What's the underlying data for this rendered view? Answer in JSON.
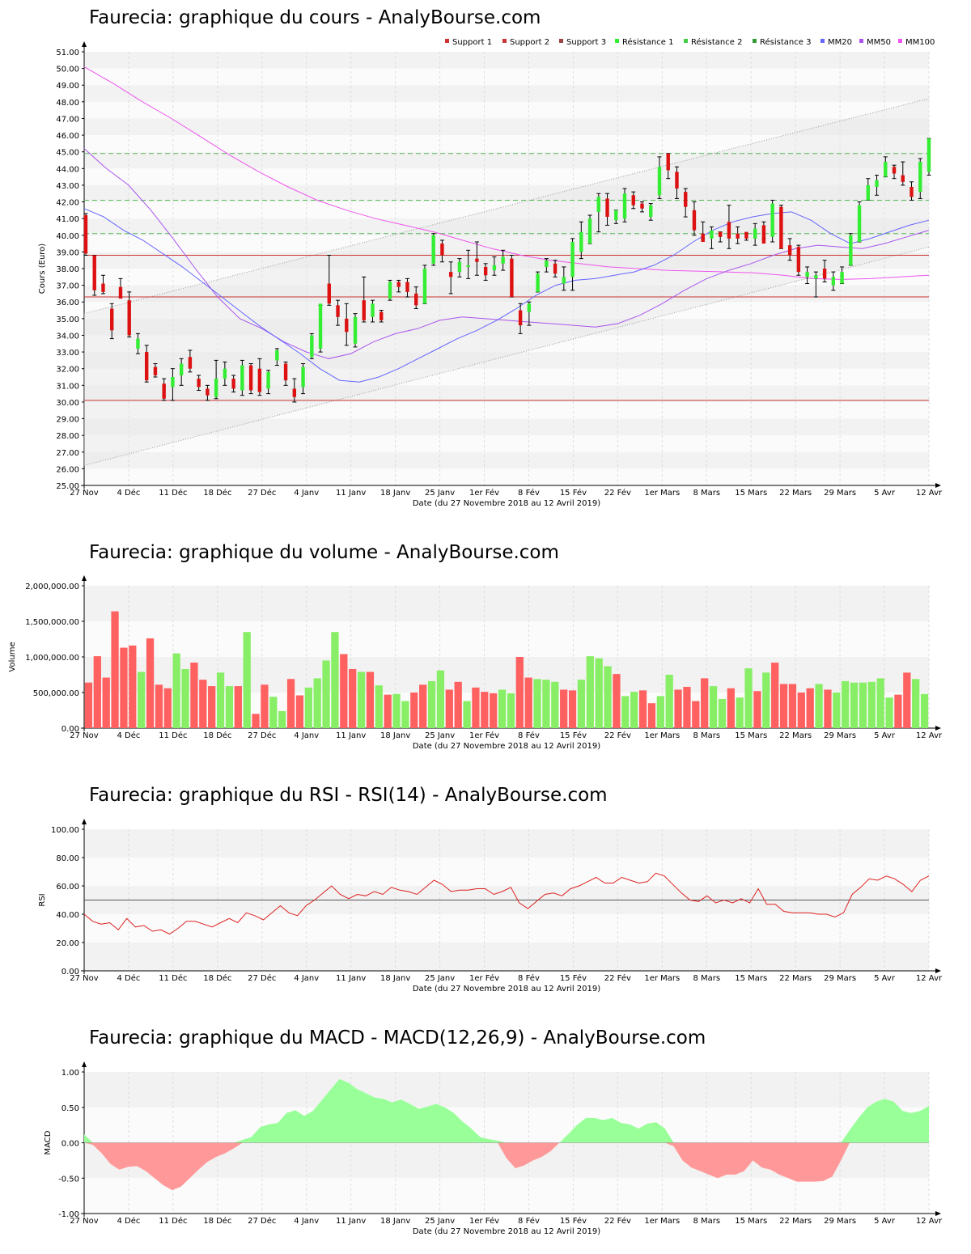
{
  "x_axis": {
    "xlabel": "Date (du 27 Novembre 2018 au 12 Avril 2019)",
    "ticks": [
      "27 Nov",
      "4 Déc",
      "11 Déc",
      "18 Déc",
      "27 Déc",
      "4 Janv",
      "11 Janv",
      "18 Janv",
      "25 Janv",
      "1er Fév",
      "8 Fév",
      "15 Fév",
      "22 Fév",
      "1er Mars",
      "8 Mars",
      "15 Mars",
      "22 Mars",
      "29 Mars",
      "5 Avr",
      "12 Avr"
    ]
  },
  "panels": {
    "price": {
      "title": "Faurecia: graphique du cours - AnalyBourse.com"
    },
    "volume": {
      "title": "Faurecia: graphique du volume - AnalyBourse.com"
    },
    "rsi": {
      "title": "Faurecia: graphique du RSI - RSI(14) - AnalyBourse.com"
    },
    "macd": {
      "title": "Faurecia: graphique du MACD - MACD(12,26,9) - AnalyBourse.com"
    }
  },
  "colors": {
    "up": "#33ee33",
    "down": "#dd1111",
    "vol_up": "#88ee66",
    "vol_down": "#ff6060",
    "support": "#cc3333",
    "resistance": "#55bb55",
    "mm20": "#6666ff",
    "mm50": "#aa55ee",
    "mm100": "#ee55ee",
    "rsi": "#dd2222",
    "macd_pos": "#99ff99",
    "macd_neg": "#ff9999"
  },
  "chart_data": [
    {
      "type": "candlestick",
      "title": "Faurecia: graphique du cours - AnalyBourse.com",
      "ylabel": "Cours (Euro)",
      "ylim": [
        25,
        51
      ],
      "legend": [
        "Support 1",
        "Support 2",
        "Support 3",
        "Résistance 1",
        "Résistance 2",
        "Résistance 3",
        "MM20",
        "MM50",
        "MM100"
      ],
      "support_levels": [
        30.1,
        36.3,
        38.8
      ],
      "resistance_levels": [
        40.1,
        42.1,
        44.9
      ],
      "trend_channel": {
        "upper": [
          35.3,
          48.2
        ],
        "lower": [
          26.2,
          39.3
        ]
      },
      "candles": [
        [
          41.3,
          38.8,
          41.2,
          38.9
        ],
        [
          38.8,
          36.4,
          38.8,
          36.7
        ],
        [
          37.6,
          36.5,
          37.1,
          36.6
        ],
        [
          35.9,
          33.8,
          35.6,
          34.3
        ],
        [
          37.4,
          36.3,
          36.9,
          36.2
        ],
        [
          36.6,
          33.9,
          36.1,
          34.0
        ],
        [
          34.1,
          32.9,
          33.2,
          33.8
        ],
        [
          33.4,
          31.2,
          33.0,
          31.3
        ],
        [
          32.3,
          31.5,
          32.1,
          31.6
        ],
        [
          31.4,
          30.1,
          31.1,
          30.2
        ],
        [
          32.0,
          30.1,
          30.9,
          31.5
        ],
        [
          32.6,
          31.0,
          31.6,
          32.3
        ],
        [
          33.1,
          31.8,
          32.7,
          32.0
        ],
        [
          31.6,
          30.7,
          31.4,
          30.9
        ],
        [
          31.0,
          30.1,
          30.8,
          30.4
        ],
        [
          32.5,
          30.2,
          30.3,
          31.4
        ],
        [
          32.4,
          31.0,
          31.4,
          32.0
        ],
        [
          31.6,
          30.6,
          31.4,
          30.8
        ],
        [
          32.5,
          30.4,
          30.7,
          32.2
        ],
        [
          32.3,
          30.5,
          32.2,
          30.7
        ],
        [
          32.6,
          30.4,
          32.0,
          30.6
        ],
        [
          31.9,
          30.5,
          30.8,
          31.8
        ],
        [
          33.2,
          32.2,
          32.5,
          33.1
        ],
        [
          32.4,
          31.0,
          32.3,
          31.3
        ],
        [
          31.4,
          30.0,
          30.8,
          30.3
        ],
        [
          32.3,
          30.5,
          30.9,
          32.1
        ],
        [
          34.1,
          32.6,
          32.7,
          34.0
        ],
        [
          35.8,
          33.0,
          33.2,
          35.9
        ],
        [
          38.8,
          35.8,
          37.1,
          35.9
        ],
        [
          36.1,
          34.6,
          35.8,
          35.1
        ],
        [
          35.9,
          33.4,
          35.0,
          34.2
        ],
        [
          35.3,
          33.3,
          33.5,
          35.1
        ],
        [
          37.5,
          34.8,
          36.1,
          34.9
        ],
        [
          36.1,
          34.8,
          35.1,
          35.9
        ],
        [
          35.5,
          34.8,
          35.4,
          34.9
        ],
        [
          37.3,
          36.1,
          36.2,
          37.2
        ],
        [
          37.3,
          36.6,
          37.2,
          36.9
        ],
        [
          37.4,
          36.3,
          37.2,
          36.6
        ],
        [
          36.9,
          35.6,
          36.5,
          35.8
        ],
        [
          38.2,
          35.9,
          35.9,
          38.0
        ],
        [
          40.1,
          38.2,
          38.3,
          40.0
        ],
        [
          39.7,
          38.4,
          39.5,
          38.8
        ],
        [
          38.4,
          36.5,
          37.8,
          37.5
        ],
        [
          38.6,
          37.5,
          37.8,
          38.4
        ],
        [
          39.1,
          37.4,
          38.1,
          38.2
        ],
        [
          39.6,
          37.6,
          38.6,
          38.4
        ],
        [
          38.3,
          37.3,
          38.1,
          37.6
        ],
        [
          38.7,
          37.6,
          37.9,
          38.2
        ],
        [
          39.1,
          37.9,
          38.3,
          38.7
        ],
        [
          38.8,
          36.3,
          38.6,
          36.3
        ],
        [
          35.9,
          34.1,
          35.5,
          34.6
        ],
        [
          36.0,
          34.6,
          35.4,
          35.9
        ],
        [
          37.8,
          36.6,
          36.6,
          37.7
        ],
        [
          38.6,
          37.8,
          38.1,
          38.5
        ],
        [
          38.5,
          37.5,
          38.3,
          37.7
        ],
        [
          38.1,
          36.7,
          37.1,
          37.5
        ],
        [
          39.8,
          36.7,
          37.5,
          39.6
        ],
        [
          40.8,
          38.6,
          39.0,
          40.2
        ],
        [
          41.2,
          39.5,
          39.5,
          41.0
        ],
        [
          42.5,
          40.2,
          41.4,
          42.3
        ],
        [
          42.5,
          40.6,
          42.2,
          41.1
        ],
        [
          41.5,
          40.7,
          40.9,
          41.5
        ],
        [
          42.8,
          40.8,
          41.0,
          42.5
        ],
        [
          42.6,
          41.6,
          42.4,
          41.8
        ],
        [
          42.0,
          41.4,
          41.9,
          41.6
        ],
        [
          41.9,
          40.9,
          41.1,
          41.8
        ],
        [
          44.7,
          42.2,
          42.4,
          44.1
        ],
        [
          44.9,
          43.4,
          44.9,
          43.9
        ],
        [
          44.1,
          42.2,
          43.8,
          42.8
        ],
        [
          42.8,
          41.1,
          42.6,
          41.7
        ],
        [
          42.0,
          40.0,
          41.5,
          40.3
        ],
        [
          40.8,
          39.8,
          40.1,
          39.6
        ],
        [
          40.5,
          39.2,
          39.8,
          40.3
        ],
        [
          40.2,
          39.6,
          40.2,
          39.9
        ],
        [
          41.8,
          39.2,
          40.8,
          39.8
        ],
        [
          40.5,
          39.5,
          40.1,
          39.8
        ],
        [
          40.1,
          39.7,
          40.2,
          39.8
        ],
        [
          40.7,
          39.4,
          39.8,
          40.4
        ],
        [
          40.8,
          39.8,
          40.6,
          39.5
        ],
        [
          42.1,
          39.6,
          39.9,
          41.9
        ],
        [
          41.8,
          39.2,
          41.7,
          39.2
        ],
        [
          39.8,
          38.5,
          39.4,
          38.8
        ],
        [
          39.4,
          37.6,
          39.3,
          37.8
        ],
        [
          38.1,
          37.1,
          37.5,
          37.8
        ],
        [
          37.8,
          36.3,
          37.4,
          37.6
        ],
        [
          38.5,
          37.2,
          38.0,
          37.4
        ],
        [
          37.8,
          36.7,
          37.0,
          37.5
        ],
        [
          38.1,
          37.1,
          37.1,
          37.8
        ],
        [
          40.1,
          38.2,
          38.2,
          40.0
        ],
        [
          42.0,
          39.6,
          39.6,
          41.8
        ],
        [
          43.4,
          42.1,
          42.1,
          43.0
        ],
        [
          43.6,
          42.4,
          42.9,
          43.3
        ],
        [
          44.7,
          43.5,
          43.5,
          44.4
        ],
        [
          44.2,
          43.4,
          44.1,
          43.7
        ],
        [
          44.4,
          43.0,
          43.6,
          43.2
        ],
        [
          43.2,
          42.1,
          42.9,
          42.3
        ],
        [
          44.6,
          42.2,
          42.6,
          44.4
        ],
        [
          45.8,
          43.6,
          43.8,
          45.8
        ]
      ],
      "mm20": [
        41.6,
        41.1,
        40.3,
        39.7,
        38.9,
        38.1,
        37.2,
        36.3,
        35.4,
        34.5,
        33.7,
        32.9,
        32.0,
        31.3,
        31.2,
        31.5,
        32.0,
        32.6,
        33.2,
        33.8,
        34.3,
        34.9,
        35.6,
        36.4,
        37.0,
        37.3,
        37.4,
        37.6,
        37.8,
        38.2,
        38.8,
        39.6,
        40.3,
        40.8,
        41.1,
        41.3,
        41.4,
        40.9,
        40.1,
        39.5,
        39.8,
        40.2,
        40.6,
        40.9
      ],
      "mm50": [
        45.2,
        44.0,
        43.0,
        41.5,
        39.8,
        38.0,
        36.3,
        35.0,
        34.4,
        33.6,
        33.0,
        32.6,
        32.9,
        33.6,
        34.1,
        34.4,
        34.9,
        35.1,
        35.0,
        34.9,
        34.8,
        34.7,
        34.6,
        34.5,
        34.7,
        35.2,
        35.9,
        36.7,
        37.4,
        37.9,
        38.3,
        38.8,
        39.2,
        39.4,
        39.3,
        39.2,
        39.5,
        39.9,
        40.3
      ],
      "mm100": [
        50.1,
        49.1,
        48.0,
        47.0,
        45.9,
        44.8,
        43.8,
        42.9,
        42.1,
        41.5,
        41.0,
        40.6,
        40.2,
        39.7,
        39.2,
        38.8,
        38.5,
        38.3,
        38.1,
        38.0,
        37.9,
        37.85,
        37.8,
        37.75,
        37.6,
        37.4,
        37.35,
        37.4,
        37.5,
        37.6
      ]
    },
    {
      "type": "bar",
      "title": "Faurecia: graphique du volume - AnalyBourse.com",
      "ylabel": "Volume",
      "ylim": [
        0,
        2000000
      ],
      "yticks": [
        "0.00",
        "500,000.00",
        "1,000,000.00",
        "1,500,000.00",
        "2,000,000.00"
      ],
      "values": [
        640000,
        1010000,
        710000,
        1640000,
        1130000,
        1160000,
        790000,
        1260000,
        610000,
        560000,
        1050000,
        830000,
        920000,
        680000,
        590000,
        780000,
        590000,
        590000,
        1350000,
        200000,
        610000,
        440000,
        240000,
        690000,
        460000,
        570000,
        700000,
        950000,
        1350000,
        1040000,
        830000,
        790000,
        790000,
        600000,
        470000,
        480000,
        380000,
        500000,
        610000,
        660000,
        810000,
        540000,
        650000,
        380000,
        570000,
        510000,
        490000,
        540000,
        490000,
        1000000,
        710000,
        690000,
        680000,
        650000,
        540000,
        530000,
        680000,
        1010000,
        980000,
        870000,
        760000,
        450000,
        510000,
        530000,
        350000,
        450000,
        750000,
        540000,
        580000,
        380000,
        700000,
        590000,
        410000,
        560000,
        430000,
        840000,
        520000,
        780000,
        920000,
        620000,
        620000,
        500000,
        560000,
        620000,
        540000,
        500000,
        660000,
        640000,
        640000,
        650000,
        700000,
        430000,
        470000,
        780000,
        690000,
        480000
      ],
      "up": [
        0,
        0,
        0,
        0,
        0,
        0,
        1,
        0,
        0,
        0,
        1,
        1,
        0,
        0,
        0,
        1,
        1,
        0,
        1,
        0,
        0,
        1,
        1,
        0,
        0,
        1,
        1,
        1,
        1,
        0,
        0,
        1,
        0,
        1,
        0,
        1,
        1,
        0,
        0,
        1,
        1,
        0,
        0,
        1,
        0,
        0,
        0,
        1,
        1,
        0,
        0,
        1,
        1,
        1,
        0,
        0,
        1,
        1,
        1,
        1,
        0,
        1,
        1,
        0,
        0,
        1,
        1,
        0,
        0,
        0,
        0,
        1,
        1,
        0,
        1,
        1,
        0,
        1,
        0,
        0,
        0,
        0,
        0,
        1,
        0,
        1,
        1,
        1,
        1,
        1,
        1,
        1,
        0,
        0,
        1,
        1
      ]
    },
    {
      "type": "line",
      "title": "Faurecia: graphique du RSI - RSI(14) - AnalyBourse.com",
      "ylabel": "RSI",
      "ylim": [
        0,
        100
      ],
      "yticks": [
        "0.00",
        "20.00",
        "40.00",
        "60.00",
        "80.00",
        "100.00"
      ],
      "reference": 50,
      "values": [
        40,
        35,
        33,
        34,
        29,
        37,
        31,
        32,
        28,
        29,
        26,
        30,
        35,
        35,
        33,
        31,
        34,
        37,
        34,
        41,
        39,
        36,
        41,
        46,
        41,
        39,
        46,
        50,
        55,
        60,
        54,
        51,
        54,
        53,
        56,
        54,
        59,
        57,
        56,
        54,
        59,
        64,
        61,
        56,
        57,
        57,
        58,
        58,
        54,
        56,
        59,
        48,
        44,
        49,
        54,
        55,
        53,
        58,
        60,
        63,
        66,
        62,
        62,
        66,
        64,
        62,
        63,
        69,
        67,
        61,
        55,
        50,
        49,
        53,
        48,
        50,
        48,
        51,
        48,
        58,
        47,
        47,
        42,
        41,
        41,
        41,
        40,
        40,
        38,
        41,
        54,
        59,
        65,
        64,
        67,
        65,
        61,
        56,
        64,
        67
      ]
    },
    {
      "type": "area",
      "title": "Faurecia: graphique du MACD - MACD(12,26,9) - AnalyBourse.com",
      "ylabel": "MACD",
      "ylim": [
        -1,
        1
      ],
      "yticks": [
        "-1.00",
        "-0.50",
        "0.00",
        "0.50",
        "1.00"
      ],
      "values": [
        0.12,
        -0.03,
        -0.15,
        -0.3,
        -0.38,
        -0.34,
        -0.33,
        -0.4,
        -0.5,
        -0.6,
        -0.67,
        -0.62,
        -0.5,
        -0.38,
        -0.27,
        -0.2,
        -0.15,
        -0.08,
        0.04,
        0.08,
        0.22,
        0.26,
        0.28,
        0.42,
        0.46,
        0.38,
        0.45,
        0.6,
        0.75,
        0.9,
        0.85,
        0.76,
        0.7,
        0.64,
        0.62,
        0.57,
        0.61,
        0.55,
        0.48,
        0.51,
        0.55,
        0.5,
        0.42,
        0.3,
        0.2,
        0.08,
        0.05,
        0.03,
        -0.22,
        -0.36,
        -0.32,
        -0.25,
        -0.2,
        -0.12,
        0.0,
        0.12,
        0.25,
        0.35,
        0.35,
        0.32,
        0.35,
        0.28,
        0.26,
        0.2,
        0.27,
        0.29,
        0.2,
        -0.05,
        -0.25,
        -0.35,
        -0.4,
        -0.45,
        -0.5,
        -0.45,
        -0.45,
        -0.4,
        -0.25,
        -0.35,
        -0.38,
        -0.45,
        -0.5,
        -0.55,
        -0.55,
        -0.55,
        -0.54,
        -0.48,
        -0.25,
        0.18,
        0.35,
        0.5,
        0.58,
        0.62,
        0.58,
        0.45,
        0.42,
        0.45,
        0.52
      ]
    }
  ]
}
